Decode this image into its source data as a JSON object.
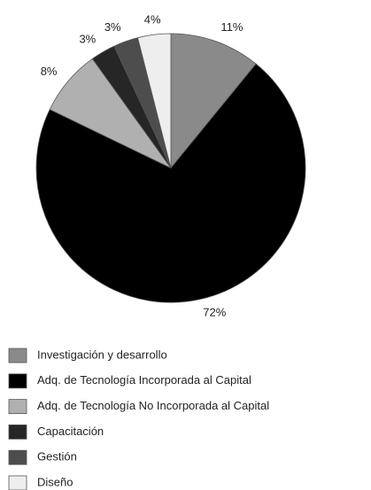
{
  "chart_data": {
    "type": "pie",
    "categories": [
      "Investigación y desarrollo",
      "Adq. de Tecnología Incorporada al Capital",
      "Adq. de Tecnología No Incorporada al Capital",
      "Capacitación",
      "Gestión",
      "Diseño"
    ],
    "values": [
      11,
      72,
      8,
      3,
      3,
      4
    ],
    "value_labels": [
      "11%",
      "72%",
      "8%",
      "3%",
      "3%",
      "4%"
    ],
    "colors": [
      "#8a8a8a",
      "#000000",
      "#b0b0b0",
      "#262626",
      "#4d4d4d",
      "#eeeeee"
    ]
  }
}
